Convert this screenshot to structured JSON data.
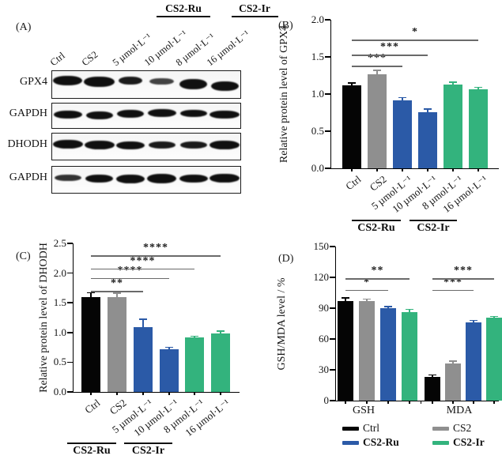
{
  "colors": {
    "black": "#050505",
    "gray": "#8f8f8f",
    "blue": "#2b5aa7",
    "green": "#33b37d"
  },
  "panels": {
    "A": {
      "label": "(A)",
      "group_headers": [
        "CS2-Ru",
        "CS2-Ir"
      ],
      "lanes": [
        "Ctrl",
        "CS2",
        "5 µmol·L⁻¹",
        "10 µmol·L⁻¹",
        "8 µmol·L⁻¹",
        "16 µmol·L⁻¹"
      ],
      "rows": [
        {
          "label": "GPX4"
        },
        {
          "label": "GAPDH"
        },
        {
          "label": "DHODH"
        },
        {
          "label": "GAPDH"
        }
      ]
    },
    "B": {
      "label": "(B)"
    },
    "C": {
      "label": "(C)"
    },
    "D": {
      "label": "(D)"
    }
  },
  "chart_data": [
    {
      "id": "B",
      "type": "bar",
      "ylabel": "Relative protein level of GPX4",
      "categories": [
        "Ctrl",
        "CS2",
        "5 µmol·L⁻¹",
        "10 µmol·L⁻¹",
        "8 µmol·L⁻¹",
        "16 µmol·L⁻¹"
      ],
      "values": [
        1.12,
        1.27,
        0.91,
        0.76,
        1.13,
        1.06
      ],
      "errors": [
        0.03,
        0.05,
        0.04,
        0.04,
        0.03,
        0.03
      ],
      "bar_colors": [
        "black",
        "gray",
        "blue",
        "blue",
        "green",
        "green"
      ],
      "ylim": [
        0,
        2.0
      ],
      "ytick_labels": [
        "0.0",
        "0.5",
        "1.0",
        "1.5",
        "2.0"
      ],
      "grid": false,
      "significance": [
        {
          "from": 0,
          "to": 2,
          "y": 1.38,
          "stars": "***"
        },
        {
          "from": 0,
          "to": 3,
          "y": 1.53,
          "stars": "***"
        },
        {
          "from": 0,
          "to": 5,
          "y": 1.73,
          "stars": "*"
        }
      ],
      "group_brackets": [
        "CS2-Ru",
        "CS2-Ir"
      ]
    },
    {
      "id": "C",
      "type": "bar",
      "ylabel": "Relative protein level of DHODH",
      "categories": [
        "Ctrl",
        "CS2",
        "5 µmol·L⁻¹",
        "10 µmol·L⁻¹",
        "8 µmol·L⁻¹",
        "16 µmol·L⁻¹"
      ],
      "values": [
        1.6,
        1.6,
        1.09,
        0.72,
        0.92,
        0.98
      ],
      "errors": [
        0.07,
        0.06,
        0.13,
        0.03,
        0.02,
        0.04
      ],
      "bar_colors": [
        "black",
        "gray",
        "blue",
        "blue",
        "green",
        "green"
      ],
      "ylim": [
        0,
        2.5
      ],
      "ytick_labels": [
        "0.0",
        "0.5",
        "1.0",
        "1.5",
        "2.0",
        "2.5"
      ],
      "grid": false,
      "significance": [
        {
          "from": 0,
          "to": 2,
          "y": 1.7,
          "stars": "**"
        },
        {
          "from": 0,
          "to": 3,
          "y": 1.92,
          "stars": "****"
        },
        {
          "from": 0,
          "to": 4,
          "y": 2.08,
          "stars": "****"
        },
        {
          "from": 0,
          "to": 5,
          "y": 2.3,
          "stars": "****"
        }
      ],
      "group_brackets": [
        "CS2-Ru",
        "CS2-Ir"
      ]
    },
    {
      "id": "D",
      "type": "grouped_bar",
      "ylabel": "GSH/MDA level / %",
      "categories": [
        "GSH",
        "MDA"
      ],
      "series": [
        {
          "name": "Ctrl",
          "color": "black",
          "bold": false,
          "values": [
            97,
            23
          ],
          "errors": [
            3,
            2
          ]
        },
        {
          "name": "CS2",
          "color": "gray",
          "bold": false,
          "values": [
            97,
            36
          ],
          "errors": [
            2,
            2.5
          ]
        },
        {
          "name": "CS2-Ru",
          "color": "blue",
          "bold": true,
          "values": [
            90,
            76
          ],
          "errors": [
            1.5,
            2
          ]
        },
        {
          "name": "CS2-Ir",
          "color": "green",
          "bold": true,
          "values": [
            86,
            81
          ],
          "errors": [
            3,
            1
          ]
        }
      ],
      "ylim": [
        0,
        150
      ],
      "ytick_labels": [
        "0",
        "30",
        "60",
        "90",
        "120",
        "150"
      ],
      "grid": false,
      "legend_position": "bottom",
      "significance": [
        {
          "group": 0,
          "from": 0,
          "to": 2,
          "y": 108,
          "stars": "*"
        },
        {
          "group": 0,
          "from": 0,
          "to": 3,
          "y": 119,
          "stars": "**"
        },
        {
          "group": 1,
          "from": 0,
          "to": 2,
          "y": 108,
          "stars": "***"
        },
        {
          "group": 1,
          "from": 0,
          "to": 3,
          "y": 119,
          "stars": "***"
        }
      ]
    }
  ]
}
